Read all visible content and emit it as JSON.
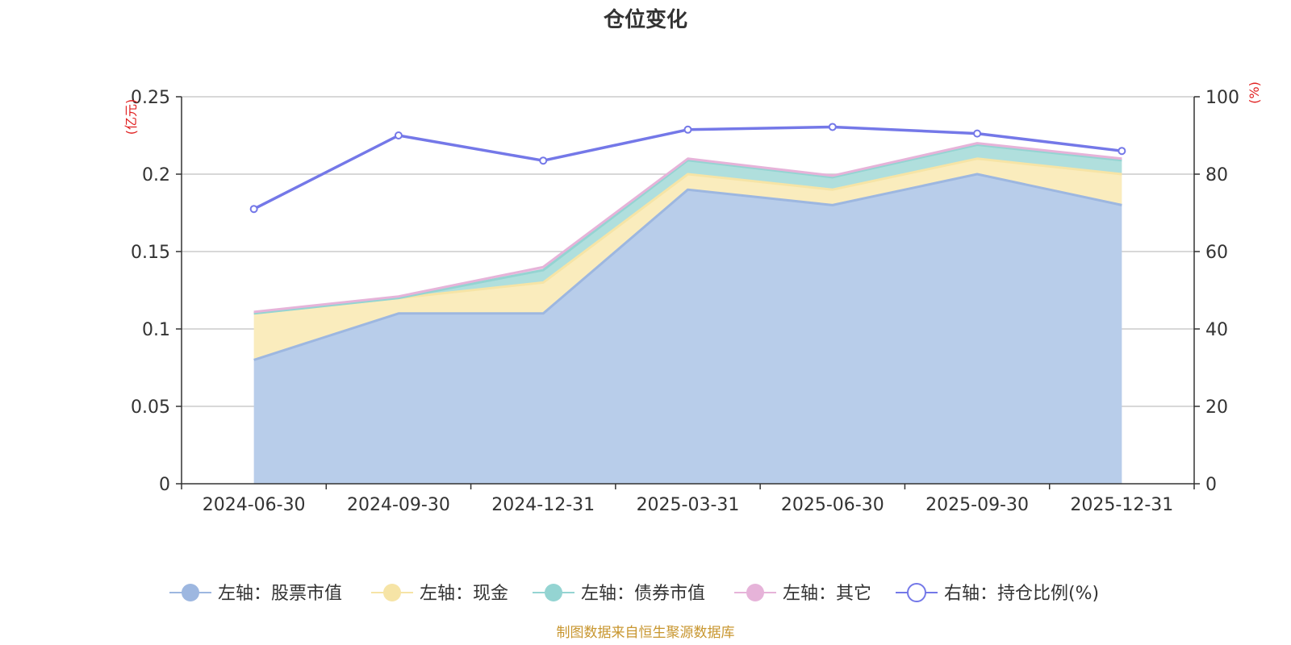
{
  "chart_data": {
    "type": "area",
    "title": "仓位变化",
    "categories": [
      "2024-06-30",
      "2024-09-30",
      "2024-12-31",
      "2025-03-31",
      "2025-06-30",
      "2025-09-30",
      "2025-12-31"
    ],
    "left_axis": {
      "unit": "(亿元)",
      "ylim": [
        0,
        0.25
      ],
      "ticks": [
        0,
        0.05,
        0.1,
        0.15,
        0.2,
        0.25
      ],
      "tick_labels": [
        "0",
        "0.05",
        "0.1",
        "0.15",
        "0.2",
        "0.25"
      ]
    },
    "right_axis": {
      "unit": "(%)",
      "ylim": [
        0,
        100
      ],
      "ticks": [
        0,
        20,
        40,
        60,
        80,
        100
      ],
      "tick_labels": [
        "0",
        "20",
        "40",
        "60",
        "80",
        "100"
      ]
    },
    "series": [
      {
        "name": "左轴：股票市值",
        "axis": "left",
        "type": "stacked-area",
        "color": "#9db7e0",
        "fill": "#b8cdea",
        "values": [
          0.08,
          0.11,
          0.11,
          0.19,
          0.18,
          0.2,
          0.18
        ]
      },
      {
        "name": "左轴：现金",
        "axis": "left",
        "type": "stacked-area",
        "color": "#f6e4a6",
        "fill": "#faecbd",
        "values": [
          0.03,
          0.01,
          0.02,
          0.01,
          0.01,
          0.01,
          0.02
        ]
      },
      {
        "name": "左轴：债券市值",
        "axis": "left",
        "type": "stacked-area",
        "color": "#94d4d2",
        "fill": "#b0dfdd",
        "values": [
          0.0,
          0.0,
          0.008,
          0.009,
          0.008,
          0.009,
          0.009
        ]
      },
      {
        "name": "左轴：其它",
        "axis": "left",
        "type": "stacked-area",
        "color": "#e6b3d9",
        "fill": "#f0cde6",
        "values": [
          0.001,
          0.001,
          0.002,
          0.001,
          0.001,
          0.001,
          0.001
        ]
      },
      {
        "name": "右轴：持仓比例(%)",
        "axis": "right",
        "type": "line",
        "color": "#7478e8",
        "values": [
          71,
          90,
          83.5,
          91.5,
          92.2,
          90.5,
          86
        ]
      }
    ],
    "legend_position": "bottom-center",
    "grid": true,
    "unit_color": "#e02020"
  },
  "source_note": "制图数据来自恒生聚源数据库",
  "source_color": "#c8962f"
}
